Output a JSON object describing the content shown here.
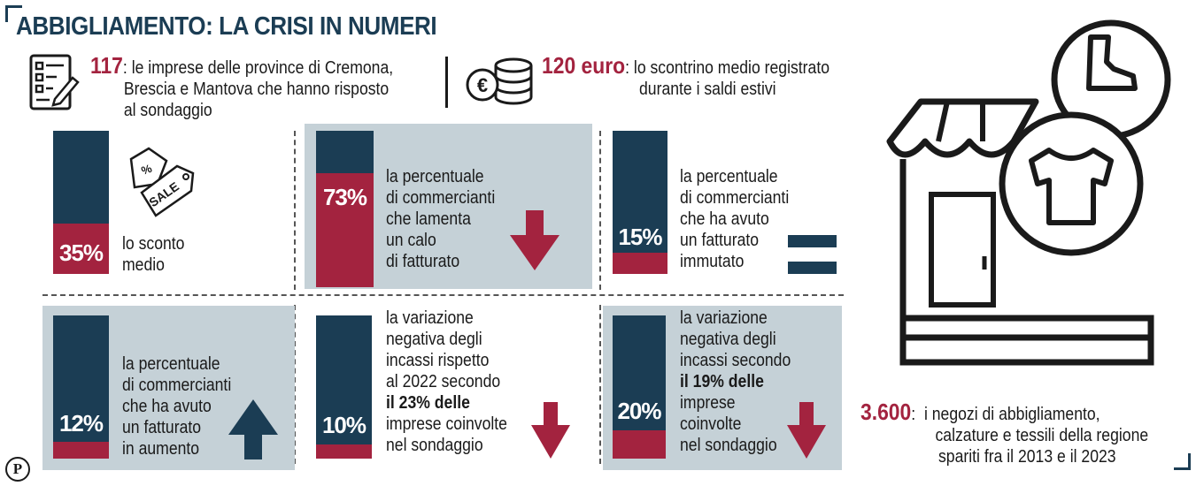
{
  "title": "ABBIGLIAMENTO: LA CRISI IN NUMERI",
  "top_stats": [
    {
      "value": "117",
      "sep": ":",
      "lines": [
        "le imprese delle province di Cremona,",
        "Brescia e Mantova che hanno risposto",
        "al sondaggio"
      ],
      "icon": "survey-form-icon"
    },
    {
      "value": "120 euro",
      "sep": ":",
      "lines": [
        "lo scontrino medio registrato",
        "durante i saldi estivi"
      ],
      "icon": "coins-euro-icon"
    }
  ],
  "cells": [
    {
      "pct": "35%",
      "fraction": 0.35,
      "lines": [
        "lo sconto",
        "medio"
      ],
      "icon": "sale-tags-icon",
      "panel": false
    },
    {
      "pct": "73%",
      "fraction": 0.73,
      "lines": [
        "la percentuale",
        "di commercianti",
        "che lamenta",
        "un calo",
        "di fatturato"
      ],
      "icon": "arrow-down-icon",
      "panel": true
    },
    {
      "pct": "15%",
      "fraction": 0.15,
      "lines": [
        "la percentuale",
        "di commercianti",
        "che ha avuto",
        "un fatturato",
        "immutato"
      ],
      "icon": "equals-icon",
      "panel": false
    },
    {
      "pct": "12%",
      "fraction": 0.12,
      "lines": [
        "la percentuale",
        "di commercianti",
        "che ha avuto",
        "un fatturato",
        "in aumento"
      ],
      "icon": "arrow-up-icon",
      "panel": true
    },
    {
      "pct": "10%",
      "fraction": 0.1,
      "lines": [
        "la variazione",
        "negativa degli",
        "incassi rispetto",
        "al 2022 secondo",
        "il 23%  delle",
        "imprese coinvolte",
        "nel sondaggio"
      ],
      "icon": "arrow-down-icon",
      "panel": false
    },
    {
      "pct": "20%",
      "fraction": 0.2,
      "lines": [
        "la variazione",
        "negativa degli",
        "incassi secondo",
        "il 19% delle",
        "imprese",
        "coinvolte",
        "nel sondaggio"
      ],
      "icon": "arrow-down-icon",
      "panel": true
    }
  ],
  "bottom_stat": {
    "value": "3.600",
    "sep": ":",
    "lines": [
      "i negozi di abbigliamento,",
      "calzature e tessili della regione",
      "spariti fra il 2013 e il 2023"
    ]
  },
  "logo": "P",
  "colors": {
    "navy": "#1b3d54",
    "red": "#a3233f",
    "panel": "#c5d1d7"
  }
}
